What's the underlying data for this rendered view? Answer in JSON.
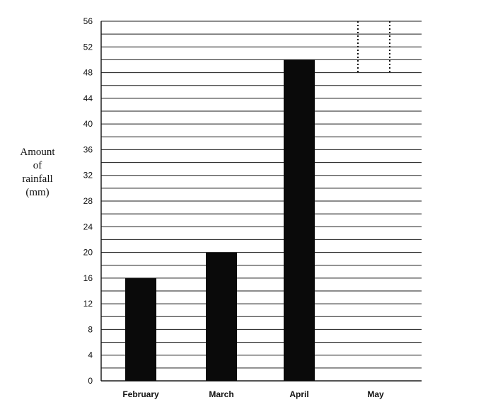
{
  "chart_data": {
    "type": "bar",
    "title": "",
    "xlabel": "",
    "ylabel_lines": [
      "Amount",
      "of",
      "rainfall",
      "(mm)"
    ],
    "categories": [
      "February",
      "March",
      "April",
      "May"
    ],
    "values": [
      16,
      20,
      50,
      null
    ],
    "ylim": [
      0,
      56
    ],
    "yticks": [
      0,
      4,
      8,
      12,
      16,
      20,
      24,
      28,
      32,
      36,
      40,
      44,
      48,
      52,
      56
    ],
    "minor_grid_step": 2,
    "grid": true,
    "bar_color": "#0a0a0a",
    "incomplete_bar": {
      "category": "May",
      "from": 48,
      "to": 56,
      "style": "dotted-outline"
    }
  }
}
